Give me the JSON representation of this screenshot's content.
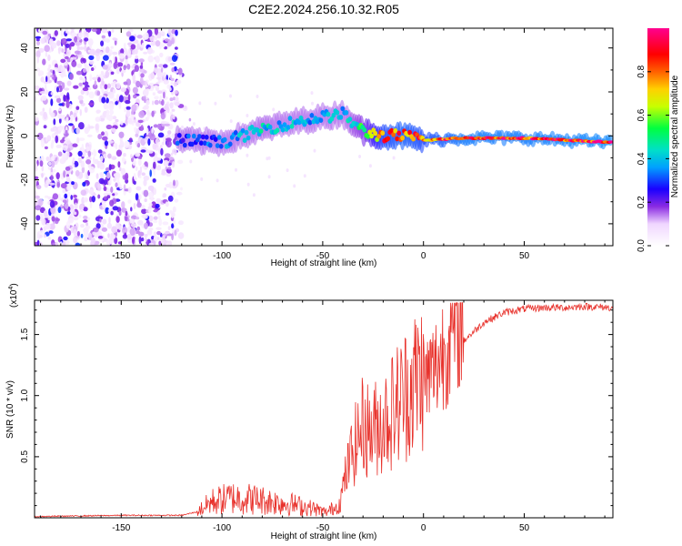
{
  "title": "C2E2.2024.256.10.32.R05",
  "colors": {
    "line": "#e8302a",
    "axis": "#000000",
    "background": "#ffffff"
  },
  "chart_data": [
    {
      "type": "heatmap",
      "title": "",
      "xlabel": "Height of straight line (km)",
      "ylabel": "Frequency (Hz)",
      "xlim": [
        -193,
        94
      ],
      "ylim": [
        -50,
        49
      ],
      "xticks": [
        -150,
        -100,
        -50,
        0,
        50
      ],
      "xtick_labels": [
        "-150",
        "-100",
        "-50",
        "0",
        "50"
      ],
      "yticks": [
        -40,
        -20,
        0,
        20,
        40
      ],
      "ytick_labels": [
        "-40",
        "-20",
        "0",
        "20",
        "40"
      ],
      "colorbar": {
        "label": "Normalized spectral amplitude",
        "range": [
          0.0,
          1.0
        ],
        "ticks": [
          0.0,
          0.2,
          0.4,
          0.6,
          0.8
        ],
        "tick_labels": [
          "0.0",
          "0.2",
          "0.4",
          "0.6",
          "0.8"
        ]
      },
      "ridge": {
        "description_points_x_km": [
          -120,
          -100,
          -80,
          -60,
          -40,
          -30,
          -20,
          -10,
          0,
          20,
          50,
          94
        ],
        "freq_hz": [
          -2,
          -3,
          3,
          7,
          10,
          2,
          0,
          0,
          -2,
          -1,
          -1,
          -3
        ],
        "amplitude": [
          0.3,
          0.35,
          0.45,
          0.4,
          0.4,
          0.55,
          0.85,
          0.9,
          0.85,
          0.95,
          0.95,
          0.98
        ]
      },
      "noise_region_x_km": [
        -193,
        -122
      ]
    },
    {
      "type": "line",
      "title": "",
      "xlabel": "Height of straight line (km)",
      "ylabel": "SNR (10 * v/v)",
      "multiplier_label": "(x10",
      "multiplier_exp": "4",
      "multiplier_close": ")",
      "xlim": [
        -193,
        94
      ],
      "ylim": [
        0,
        1.78
      ],
      "xticks": [
        -150,
        -100,
        -50,
        0,
        50
      ],
      "xtick_labels": [
        "-150",
        "-100",
        "-50",
        "0",
        "50"
      ],
      "yticks": [
        0.5,
        1.0,
        1.5
      ],
      "ytick_labels": [
        "0.5",
        "1.0",
        "1.5"
      ],
      "series": [
        {
          "name": "SNR",
          "envelope_x": [
            -193,
            -150,
            -120,
            -112,
            -105,
            -95,
            -85,
            -75,
            -65,
            -55,
            -48,
            -42,
            -36,
            -30,
            -26,
            -22,
            -18,
            -12,
            -6,
            0,
            6,
            12,
            20,
            30,
            40,
            50,
            60,
            70,
            80,
            94
          ],
          "envelope_y": [
            0.01,
            0.02,
            0.02,
            0.05,
            0.12,
            0.15,
            0.14,
            0.12,
            0.1,
            0.07,
            0.04,
            0.1,
            0.4,
            0.6,
            0.55,
            0.6,
            0.65,
            0.75,
            0.85,
            0.95,
            1.05,
            1.25,
            1.45,
            1.6,
            1.68,
            1.71,
            1.72,
            1.72,
            1.73,
            1.72
          ]
        }
      ]
    }
  ]
}
